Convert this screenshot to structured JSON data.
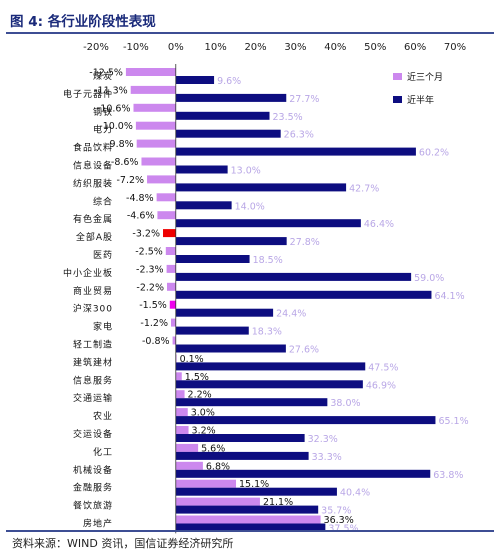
{
  "figure_title": "图 4:  各行业阶段性表现",
  "source_note": "资料来源：WIND 资讯，国信证券经济研究所",
  "colors": {
    "three_month": "#cc88ee",
    "half_year": "#0d0d80",
    "all_a_highlight": "#ee0000",
    "hs300_highlight": "#ee00ee",
    "half_year_label": "#b9a7e6",
    "rule": "#3d4e94"
  },
  "chart_data": {
    "type": "bar",
    "orientation": "horizontal",
    "xlim": [
      -20,
      70
    ],
    "xticks": [
      -20,
      -10,
      0,
      10,
      20,
      30,
      40,
      50,
      60,
      70
    ],
    "tick_labels": [
      "-20%",
      "-10%",
      "0%",
      "10%",
      "20%",
      "30%",
      "40%",
      "50%",
      "60%",
      "70%"
    ],
    "value_suffix": "%",
    "legend_position": "top-right",
    "grid": false,
    "categories": [
      "煤炭",
      "电子元器件",
      "钢铁",
      "电力",
      "食品饮料",
      "信息设备",
      "纺织服装",
      "综合",
      "有色金属",
      "全部A股",
      "医药",
      "中小企业板",
      "商业贸易",
      "沪深300",
      "家电",
      "轻工制造",
      "建筑建材",
      "信息服务",
      "交通运输",
      "农业",
      "交运设备",
      "化工",
      "机械设备",
      "金融服务",
      "餐饮旅游",
      "房地产"
    ],
    "series": [
      {
        "name": "近三个月",
        "values": [
          -12.5,
          -11.3,
          -10.6,
          -10.0,
          -9.8,
          -8.6,
          -7.2,
          -4.8,
          -4.6,
          -3.2,
          -2.5,
          -2.3,
          -2.2,
          -1.5,
          -1.2,
          -0.8,
          0.1,
          1.5,
          2.2,
          3.0,
          3.2,
          5.6,
          6.8,
          15.1,
          21.1,
          36.3
        ],
        "labels": [
          "-12.5%",
          "-11.3%",
          "-10.6%",
          "-10.0%",
          "-9.8%",
          "-8.6%",
          "-7.2%",
          "-4.8%",
          "-4.6%",
          "-3.2%",
          "-2.5%",
          "-2.3%",
          "-2.2%",
          "-1.5%",
          "-1.2%",
          "-0.8%",
          "0.1%",
          "1.5%",
          "2.2%",
          "3.0%",
          "3.2%",
          "5.6%",
          "6.8%",
          "15.1%",
          "21.1%",
          "36.3%"
        ]
      },
      {
        "name": "近半年",
        "values": [
          9.6,
          27.7,
          23.5,
          26.3,
          60.2,
          13.0,
          42.7,
          14.0,
          46.4,
          27.8,
          18.5,
          59.0,
          64.1,
          24.4,
          18.3,
          27.6,
          47.5,
          46.9,
          38.0,
          65.1,
          32.3,
          33.3,
          63.8,
          40.4,
          35.7,
          37.5
        ],
        "labels": [
          "9.6%",
          "27.7%",
          "23.5%",
          "26.3%",
          "60.2%",
          "13.0%",
          "42.7%",
          "14.0%",
          "46.4%",
          "27.8%",
          "18.5%",
          "59.0%",
          "64.1%",
          "24.4%",
          "18.3%",
          "27.6%",
          "47.5%",
          "46.9%",
          "38.0%",
          "65.1%",
          "32.3%",
          "33.3%",
          "63.8%",
          "40.4%",
          "35.7%",
          "37.5%"
        ]
      }
    ],
    "highlight": {
      "全部A股": "all_a_highlight",
      "沪深300": "hs300_highlight"
    }
  }
}
